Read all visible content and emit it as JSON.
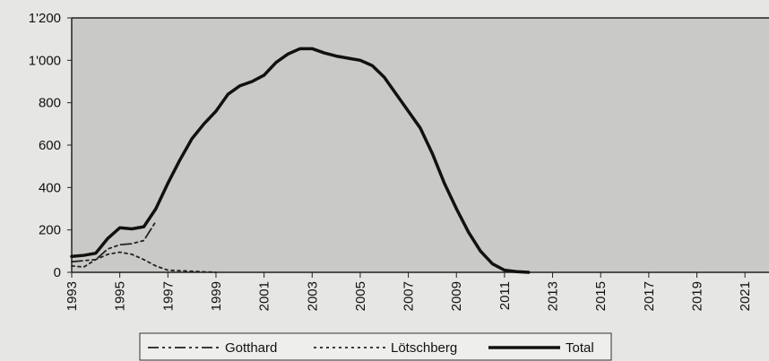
{
  "chart_data": {
    "type": "line",
    "xlim": [
      1993,
      2022
    ],
    "xticks": [
      1993,
      1995,
      1997,
      1999,
      2001,
      2003,
      2005,
      2007,
      2009,
      2011,
      2013,
      2015,
      2017,
      2019,
      2021
    ],
    "ylim": [
      0,
      1200
    ],
    "yticks": [
      0,
      200,
      400,
      600,
      800,
      {
        "value": 1000,
        "label": "1'000"
      },
      {
        "value": 1200,
        "label": "1'200"
      }
    ],
    "legend": "bottom",
    "series": [
      {
        "name": "Gotthard",
        "color": "#222222",
        "linestyle": "dashdot",
        "x": [
          1993,
          1994,
          1994.5,
          1995,
          1995.5,
          1996,
          1996.5
        ],
        "values": [
          50,
          60,
          110,
          130,
          135,
          150,
          240
        ]
      },
      {
        "name": "Lötschberg",
        "color": "#222222",
        "linestyle": "dotted",
        "x": [
          1993,
          1993.5,
          1994,
          1994.5,
          1995,
          1995.5,
          1996,
          1996.5,
          1997,
          1998,
          1999
        ],
        "values": [
          30,
          25,
          60,
          85,
          95,
          85,
          60,
          30,
          10,
          5,
          0
        ]
      },
      {
        "name": "Total",
        "color": "#111111",
        "linestyle": "solid",
        "x": [
          1993,
          1993.5,
          1994,
          1994.5,
          1995,
          1995.5,
          1996,
          1996.5,
          1997,
          1997.5,
          1998,
          1998.5,
          1999,
          1999.5,
          2000,
          2000.5,
          2001,
          2001.5,
          2002,
          2002.5,
          2003,
          2003.5,
          2004,
          2004.5,
          2005,
          2005.5,
          2006,
          2006.5,
          2007,
          2007.5,
          2008,
          2008.5,
          2009,
          2009.5,
          2010,
          2010.5,
          2011,
          2011.5,
          2012
        ],
        "values": [
          75,
          80,
          90,
          160,
          210,
          205,
          215,
          300,
          420,
          530,
          630,
          700,
          760,
          840,
          880,
          900,
          930,
          990,
          1030,
          1055,
          1055,
          1035,
          1020,
          1010,
          1000,
          975,
          920,
          840,
          760,
          680,
          560,
          420,
          300,
          190,
          100,
          40,
          10,
          3,
          0
        ]
      }
    ]
  }
}
